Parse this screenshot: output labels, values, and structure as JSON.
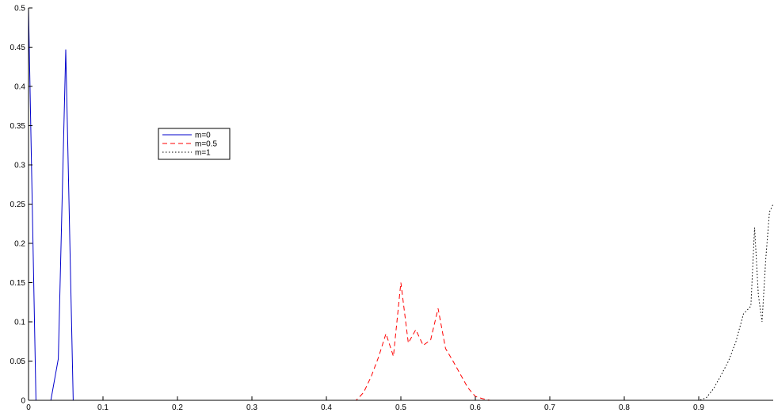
{
  "chart_data": {
    "type": "line",
    "title": "",
    "xlabel": "",
    "ylabel": "",
    "xlim": [
      0,
      1
    ],
    "ylim": [
      0,
      0.5
    ],
    "grid": false,
    "legend_position": "upper-left inset",
    "x_ticks": [
      0,
      0.1,
      0.2,
      0.3,
      0.4,
      0.5,
      0.6,
      0.7,
      0.8,
      0.9
    ],
    "x_tick_labels": [
      "0",
      "0.1",
      "0.2",
      "0.3",
      "0.4",
      "0.5",
      "0.6",
      "0.7",
      "0.8",
      "0.9"
    ],
    "y_ticks": [
      0,
      0.05,
      0.1,
      0.15,
      0.2,
      0.25,
      0.3,
      0.35,
      0.4,
      0.45,
      0.5
    ],
    "y_tick_labels": [
      "0",
      "0.05",
      "0.1",
      "0.15",
      "0.2",
      "0.25",
      "0.3",
      "0.35",
      "0.4",
      "0.45",
      "0.5"
    ],
    "series": [
      {
        "name": "m=0",
        "color": "#0000cc",
        "dash": "solid",
        "x": [
          0,
          0.01,
          0.02,
          0.03,
          0.04,
          0.05,
          0.06,
          0.07,
          0.08,
          0.09,
          0.1,
          0.15,
          0.2,
          0.3,
          0.4,
          0.5,
          0.6,
          0.7,
          0.8,
          0.9,
          1.0
        ],
        "y": [
          0.5,
          0,
          0,
          0,
          0.053,
          0.447,
          0,
          0,
          0,
          0,
          0,
          0,
          0,
          0,
          0,
          0,
          0,
          0,
          0,
          0,
          0
        ]
      },
      {
        "name": "m=0.5",
        "color": "#ff0000",
        "dash": "dashed",
        "x": [
          0,
          0.1,
          0.2,
          0.3,
          0.4,
          0.44,
          0.45,
          0.46,
          0.47,
          0.48,
          0.49,
          0.5,
          0.51,
          0.52,
          0.53,
          0.54,
          0.55,
          0.56,
          0.57,
          0.58,
          0.59,
          0.6,
          0.61,
          0.62,
          0.7,
          0.8,
          0.9,
          1.0
        ],
        "y": [
          0,
          0,
          0,
          0,
          0,
          0,
          0.01,
          0.03,
          0.055,
          0.085,
          0.056,
          0.15,
          0.073,
          0.09,
          0.07,
          0.077,
          0.117,
          0.066,
          0.05,
          0.033,
          0.016,
          0.005,
          0.002,
          0,
          0,
          0,
          0,
          0
        ]
      },
      {
        "name": "m=1",
        "color": "#000000",
        "dash": "dotted",
        "x": [
          0,
          0.1,
          0.2,
          0.3,
          0.4,
          0.5,
          0.6,
          0.7,
          0.8,
          0.9,
          0.91,
          0.92,
          0.93,
          0.94,
          0.95,
          0.96,
          0.97,
          0.975,
          0.98,
          0.985,
          0.99,
          0.995,
          1.0
        ],
        "y": [
          0,
          0,
          0,
          0,
          0,
          0,
          0,
          0,
          0,
          0,
          0.003,
          0.015,
          0.032,
          0.05,
          0.075,
          0.11,
          0.12,
          0.22,
          0.135,
          0.1,
          0.18,
          0.24,
          0.25
        ]
      }
    ]
  }
}
